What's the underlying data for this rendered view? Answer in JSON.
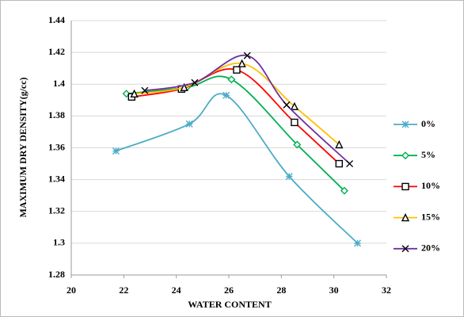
{
  "chart_data": {
    "type": "line",
    "x_label": "WATER CONTENT",
    "y_label": "MAXIMUM DRY DENSITY(g/cc)",
    "xlim": [
      20,
      32
    ],
    "xticks": [
      20,
      22,
      24,
      26,
      28,
      30,
      32
    ],
    "ylim": [
      1.28,
      1.44
    ],
    "yticks": [
      1.28,
      {
        "value": 1.3,
        "label": "1.3"
      },
      1.32,
      1.34,
      1.36,
      1.38,
      {
        "value": 1.4,
        "label": "1.4"
      },
      1.42,
      1.44
    ],
    "grid": true,
    "smooth": true,
    "legend": "right",
    "series": [
      {
        "name": "0%",
        "color": "#4bacc6",
        "marker": "star",
        "marker_color": "#4bacc6",
        "x": [
          21.7,
          24.5,
          25.9,
          28.3,
          30.9
        ],
        "values": [
          1.358,
          1.375,
          1.393,
          1.342,
          1.3
        ]
      },
      {
        "name": "5%",
        "color": "#00b050",
        "marker": "diamond",
        "marker_color": "#00b050",
        "x": [
          22.1,
          24.4,
          26.1,
          28.6,
          30.4
        ],
        "values": [
          1.394,
          1.398,
          1.403,
          1.362,
          1.333
        ]
      },
      {
        "name": "10%",
        "color": "#ff0000",
        "marker": "square",
        "marker_color": "#000000",
        "x": [
          22.3,
          24.2,
          26.3,
          28.5,
          30.2
        ],
        "values": [
          1.392,
          1.397,
          1.409,
          1.376,
          1.35
        ]
      },
      {
        "name": "15%",
        "color": "#ffc000",
        "marker": "triangle",
        "marker_color": "#000000",
        "x": [
          22.4,
          24.3,
          26.5,
          28.5,
          30.2
        ],
        "values": [
          1.394,
          1.398,
          1.413,
          1.386,
          1.362
        ]
      },
      {
        "name": "20%",
        "color": "#7030a0",
        "marker": "cross",
        "marker_color": "#000000",
        "x": [
          22.8,
          24.7,
          26.7,
          28.2,
          30.6
        ],
        "values": [
          1.396,
          1.401,
          1.418,
          1.387,
          1.35
        ]
      }
    ]
  }
}
